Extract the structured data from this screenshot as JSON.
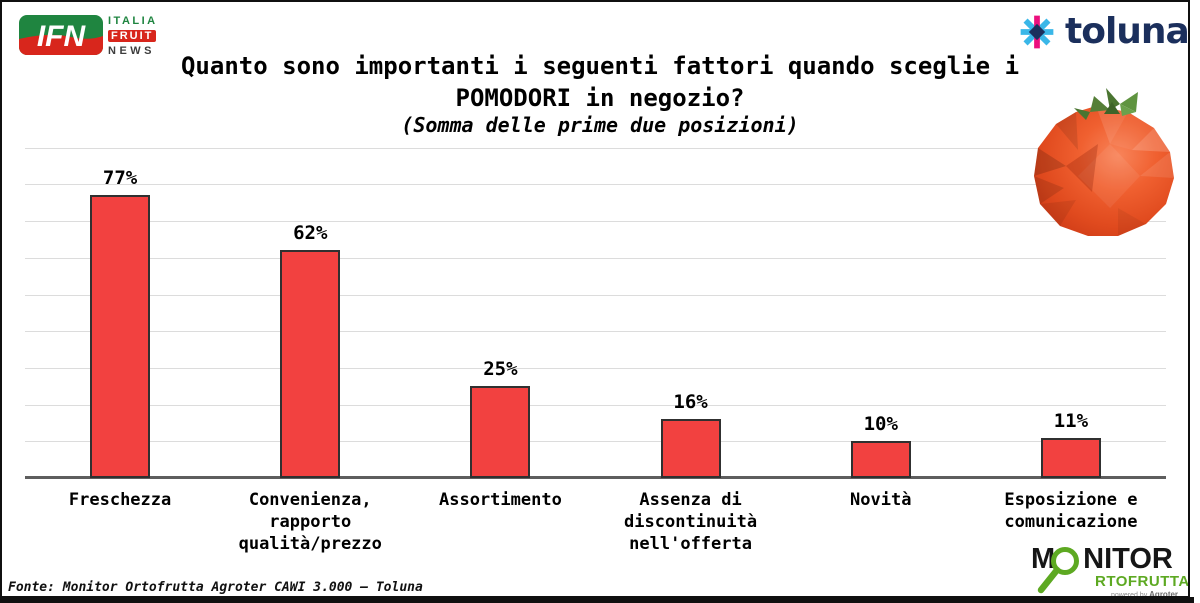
{
  "header": {
    "ifn": {
      "abbr": "IFN",
      "word1": "ITALIA",
      "word2": "FRUIT",
      "word3": "NEWS"
    },
    "toluna": {
      "wordmark": "toluna"
    },
    "title_line1": "Quanto sono importanti i seguenti fattori quando sceglie i",
    "title_line2": "POMODORI in negozio?",
    "subtitle": "(Somma delle prime due posizioni)"
  },
  "chart_data": {
    "type": "bar",
    "title": "Quanto sono importanti i seguenti fattori quando sceglie i POMODORI in negozio?",
    "subtitle": "(Somma delle prime due posizioni)",
    "categories": [
      "Freschezza",
      "Convenienza, rapporto qualità/prezzo",
      "Assortimento",
      "Assenza di discontinuità nell'offerta",
      "Novità",
      "Esposizione e comunicazione"
    ],
    "category_lines": [
      [
        "Freschezza"
      ],
      [
        "Convenienza,",
        "rapporto",
        "qualità/prezzo"
      ],
      [
        "Assortimento"
      ],
      [
        "Assenza di",
        "discontinuità",
        "nell'offerta"
      ],
      [
        "Novità"
      ],
      [
        "Esposizione e",
        "comunicazione"
      ]
    ],
    "values": [
      77,
      62,
      25,
      16,
      10,
      11
    ],
    "value_labels": [
      "77%",
      "62%",
      "25%",
      "16%",
      "10%",
      "11%"
    ],
    "unit": "%",
    "ylim": [
      0,
      90
    ],
    "grid_step": 10,
    "grid_on": true,
    "legend": "none",
    "xlabel": "",
    "ylabel": "",
    "bar_color": "#f24140",
    "bar_border_color": "#303030",
    "gridline_color": "#dcdcdc",
    "axis_color": "#5e5e5e"
  },
  "footer": {
    "source": "Fonte: Monitor Ortofrutta Agroter CAWI 3.000 – Toluna",
    "monitor_logo": {
      "m": "M",
      "nitor": "NITOR",
      "row2": "RTOFRUTTA",
      "powered": "powered by",
      "brand": "Agroter"
    }
  },
  "colors": {
    "ifn_green": "#1f8540",
    "ifn_red": "#d8261c",
    "toluna_navy": "#1b2f5c",
    "toluna_cyan": "#3ab7e8",
    "toluna_pink": "#ec0f7e",
    "monitor_green": "#5da922",
    "bar_red": "#f24140"
  }
}
